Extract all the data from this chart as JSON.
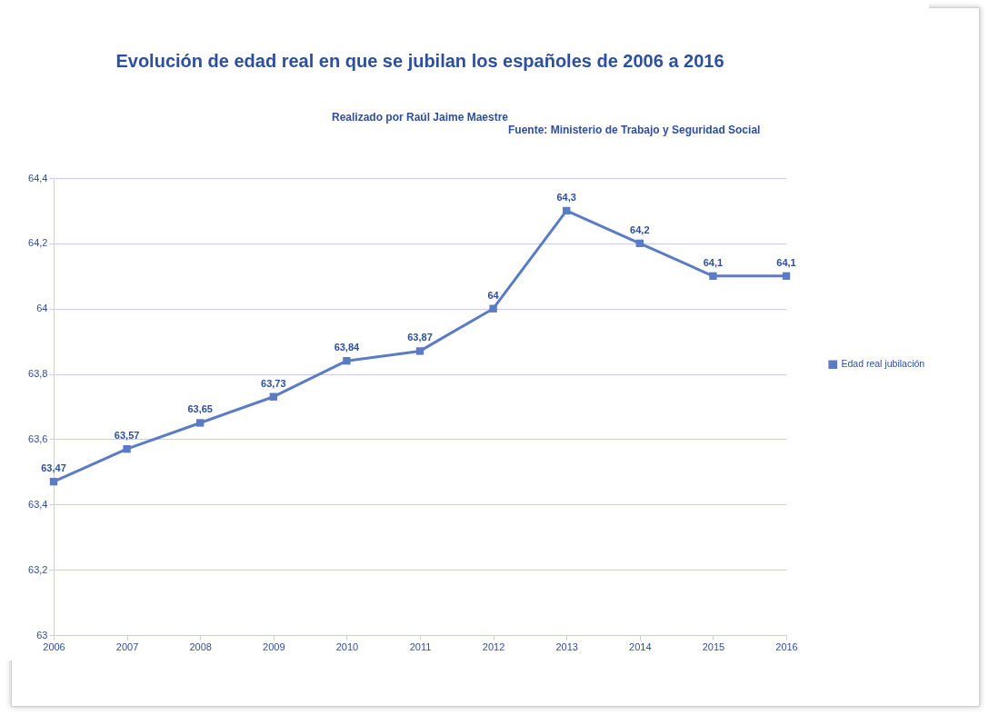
{
  "chart_data": {
    "type": "line",
    "title": "Evolución de edad real en que se jubilan los españoles de 2006 a 2016",
    "subtitle": "Realizado por Raúl Jaime Maestre",
    "annotations": [
      "Fuente: Ministerio de Trabajo y Seguridad Social"
    ],
    "categories": [
      "2006",
      "2007",
      "2008",
      "2009",
      "2010",
      "2011",
      "2012",
      "2013",
      "2014",
      "2015",
      "2016"
    ],
    "series": [
      {
        "name": "Edad real jubilación",
        "color": "#5b7cc4",
        "values": [
          63.47,
          63.57,
          63.65,
          63.73,
          63.84,
          63.87,
          64,
          64.3,
          64.2,
          64.1,
          64.1
        ],
        "value_labels": [
          "63,47",
          "63,57",
          "63,65",
          "63,73",
          "63,84",
          "63,87",
          "64",
          "64,3",
          "64,2",
          "64,1",
          "64,1"
        ]
      }
    ],
    "ylim": [
      63,
      64.4
    ],
    "yticks": [
      63,
      {
        "value": 63.2,
        "label": "63,2"
      },
      {
        "value": 63.4,
        "label": "63,4"
      },
      {
        "value": 63.6,
        "label": "63,6"
      },
      {
        "value": 63.8,
        "label": "63,8"
      },
      64,
      {
        "value": 64.2,
        "label": "64,2"
      },
      {
        "value": 64.4,
        "label": "64,4"
      }
    ],
    "grid": "y",
    "legend": "right",
    "marker": "square",
    "line_style": "solid"
  }
}
